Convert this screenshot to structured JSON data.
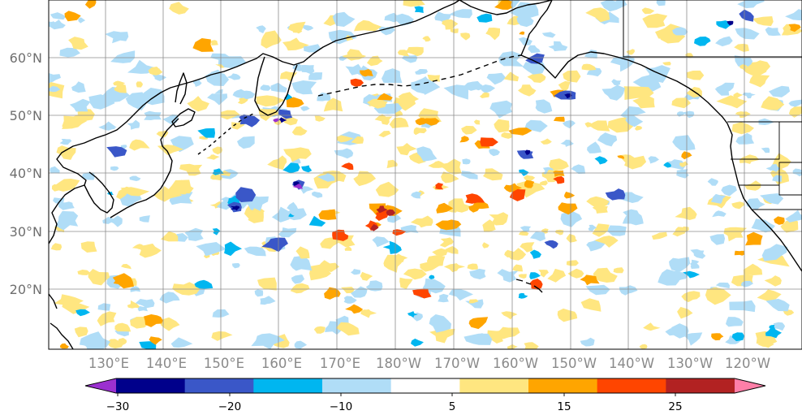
{
  "map": {
    "lat_labels": [
      "60°N",
      "50°N",
      "40°N",
      "30°N",
      "20°N"
    ],
    "lon_labels": [
      "130°E",
      "140°E",
      "150°E",
      "160°E",
      "170°E",
      "180°W",
      "170°W",
      "160°W",
      "150°W",
      "140°W",
      "130°W",
      "120°W"
    ],
    "extent": {
      "lon_min": 120,
      "lon_max": 245,
      "lat_min": 10,
      "lat_max": 70
    }
  },
  "colorbar": {
    "tick_labels": [
      "−30",
      "−20",
      "−10",
      "5",
      "15",
      "25"
    ],
    "colors": [
      "#9b30d0",
      "#00008b",
      "#3a57c8",
      "#00b6f0",
      "#b0ddf7",
      "#ffffff",
      "#ffe680",
      "#ffa500",
      "#ff4500",
      "#b22222",
      "#ff7fa8"
    ]
  },
  "palette": {
    "orange": "#ffa500",
    "red": "#ff4500",
    "dark_red": "#b22222",
    "light_blue": "#b0ddf7",
    "cyan": "#00b6f0",
    "blue": "#3a57c8",
    "navy": "#00008b",
    "purple": "#9b30d0",
    "yellow": "#ffe680"
  }
}
